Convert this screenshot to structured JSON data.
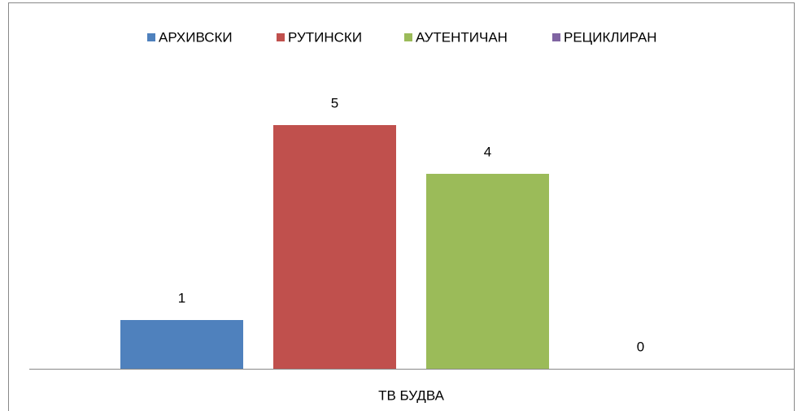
{
  "chart_data": {
    "type": "bar",
    "categories": [
      "ТВ БУДВА"
    ],
    "series": [
      {
        "name": "АРХИВСКИ",
        "color": "#4f81bd",
        "values": [
          1
        ]
      },
      {
        "name": "РУТИНСКИ",
        "color": "#c0504d",
        "values": [
          5
        ]
      },
      {
        "name": "АУТЕНТИЧАН",
        "color": "#9bbb59",
        "values": [
          4
        ]
      },
      {
        "name": "РЕЦИКЛИРАН",
        "color": "#8064a2",
        "values": [
          0
        ]
      }
    ],
    "ylim": [
      0,
      6
    ],
    "legend": "top"
  }
}
